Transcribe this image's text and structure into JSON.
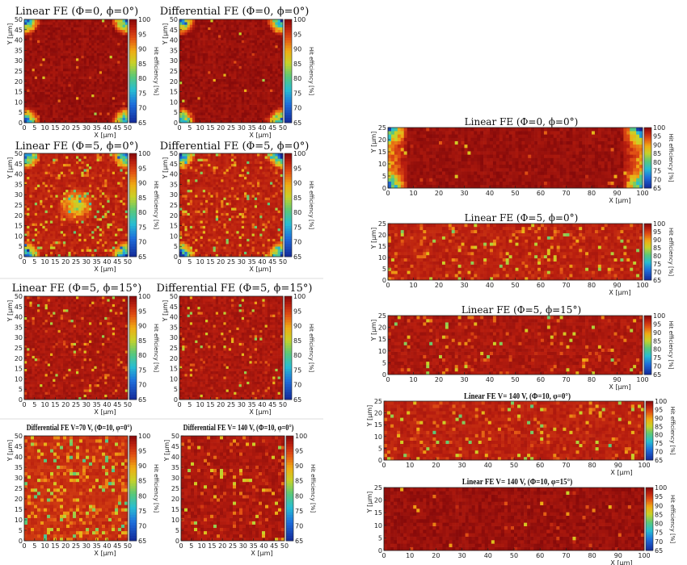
{
  "chart_data": [
    {
      "type": "heatmap",
      "id": "p1",
      "title": "Linear FE (Φ=0, ϕ=0°)",
      "xlabel": "X [μm]",
      "ylabel": "Y [μm]",
      "colorbar_label": "Hit efficiency [%]",
      "xlim": [
        0,
        50
      ],
      "ylim": [
        0,
        50
      ],
      "zlim": [
        65,
        100
      ],
      "x_ticks": [
        0,
        5,
        10,
        15,
        20,
        25,
        30,
        35,
        40,
        45,
        50
      ],
      "y_ticks": [
        0,
        5,
        10,
        15,
        20,
        25,
        30,
        35,
        40,
        45,
        50
      ],
      "colorbar_ticks": [
        65,
        70,
        75,
        80,
        85,
        90,
        95,
        100
      ],
      "pattern": "corners",
      "bulk_efficiency": 99,
      "noise": 0.03
    },
    {
      "type": "heatmap",
      "id": "p2",
      "title": "Differential FE (Φ=0, ϕ=0°)",
      "xlabel": "X [μm]",
      "ylabel": "Y [μm]",
      "colorbar_label": "Hit efficiency [%]",
      "xlim": [
        0,
        50
      ],
      "ylim": [
        0,
        50
      ],
      "zlim": [
        65,
        100
      ],
      "x_ticks": [
        0,
        5,
        10,
        15,
        20,
        25,
        30,
        35,
        40,
        45,
        50
      ],
      "y_ticks": [
        0,
        5,
        10,
        15,
        20,
        25,
        30,
        35,
        40,
        45,
        50
      ],
      "colorbar_ticks": [
        65,
        70,
        75,
        80,
        85,
        90,
        95,
        100
      ],
      "pattern": "corners",
      "bulk_efficiency": 99,
      "noise": 0.03
    },
    {
      "type": "heatmap",
      "id": "p3",
      "title": "Linear FE (Φ=5, ϕ=0°)",
      "xlabel": "X [μm]",
      "ylabel": "Y [μm]",
      "colorbar_label": "Hit efficiency [%]",
      "xlim": [
        0,
        50
      ],
      "ylim": [
        0,
        50
      ],
      "zlim": [
        65,
        100
      ],
      "x_ticks": [
        0,
        5,
        10,
        15,
        20,
        25,
        30,
        35,
        40,
        45,
        50
      ],
      "y_ticks": [
        0,
        5,
        10,
        15,
        20,
        25,
        30,
        35,
        40,
        45,
        50
      ],
      "colorbar_ticks": [
        65,
        70,
        75,
        80,
        85,
        90,
        95,
        100
      ],
      "pattern": "corners_center",
      "bulk_efficiency": 97,
      "noise": 0.25
    },
    {
      "type": "heatmap",
      "id": "p4",
      "title": "Differential FE (Φ=5, ϕ=0°)",
      "xlabel": "X [μm]",
      "ylabel": "Y [μm]",
      "colorbar_label": "Hit efficiency [%]",
      "xlim": [
        0,
        50
      ],
      "ylim": [
        0,
        50
      ],
      "zlim": [
        65,
        100
      ],
      "x_ticks": [
        0,
        5,
        10,
        15,
        20,
        25,
        30,
        35,
        40,
        45,
        50
      ],
      "y_ticks": [
        0,
        5,
        10,
        15,
        20,
        25,
        30,
        35,
        40,
        45,
        50
      ],
      "colorbar_ticks": [
        65,
        70,
        75,
        80,
        85,
        90,
        95,
        100
      ],
      "pattern": "corners",
      "bulk_efficiency": 97,
      "noise": 0.25
    },
    {
      "type": "heatmap",
      "id": "p5",
      "title": "Linear FE (Φ=5, ϕ=15°)",
      "xlabel": "X [μm]",
      "ylabel": "Y [μm]",
      "colorbar_label": "Hit efficiency [%]",
      "xlim": [
        0,
        50
      ],
      "ylim": [
        0,
        50
      ],
      "zlim": [
        65,
        100
      ],
      "x_ticks": [
        0,
        5,
        10,
        15,
        20,
        25,
        30,
        35,
        40,
        45,
        50
      ],
      "y_ticks": [
        0,
        5,
        10,
        15,
        20,
        25,
        30,
        35,
        40,
        45,
        50
      ],
      "colorbar_ticks": [
        65,
        70,
        75,
        80,
        85,
        90,
        95,
        100
      ],
      "pattern": "uniform",
      "bulk_efficiency": 98,
      "noise": 0.15
    },
    {
      "type": "heatmap",
      "id": "p6",
      "title": "Differential FE (Φ=5, ϕ=15°)",
      "xlabel": "X [μm]",
      "ylabel": "Y [μm]",
      "colorbar_label": "Hit efficiency [%]",
      "xlim": [
        0,
        50
      ],
      "ylim": [
        0,
        50
      ],
      "zlim": [
        65,
        100
      ],
      "x_ticks": [
        0,
        5,
        10,
        15,
        20,
        25,
        30,
        35,
        40,
        45,
        50
      ],
      "y_ticks": [
        0,
        5,
        10,
        15,
        20,
        25,
        30,
        35,
        40,
        45,
        50
      ],
      "colorbar_ticks": [
        65,
        70,
        75,
        80,
        85,
        90,
        95,
        100
      ],
      "pattern": "uniform",
      "bulk_efficiency": 98,
      "noise": 0.12
    },
    {
      "type": "heatmap",
      "id": "p7",
      "title": "Differential FE V=70 V, (Φ=10, φ=0°)",
      "xlabel": "X [μm]",
      "ylabel": "Y [μm]",
      "colorbar_label": "Hit efficiency [%]",
      "xlim": [
        0,
        50
      ],
      "ylim": [
        0,
        50
      ],
      "zlim": [
        65,
        100
      ],
      "x_ticks": [
        0,
        5,
        10,
        15,
        20,
        25,
        30,
        35,
        40,
        45,
        50
      ],
      "y_ticks": [
        0,
        5,
        10,
        15,
        20,
        25,
        30,
        35,
        40,
        45,
        50
      ],
      "colorbar_ticks": [
        65,
        70,
        75,
        80,
        85,
        90,
        95,
        100
      ],
      "pattern": "uniform",
      "bulk_efficiency": 96,
      "noise": 0.4
    },
    {
      "type": "heatmap",
      "id": "p8",
      "title": "Differential FE V= 140 V, (Φ=10, φ=0°)",
      "xlabel": "X [μm]",
      "ylabel": "Y [μm]",
      "colorbar_label": "Hit efficiency [%]",
      "xlim": [
        0,
        50
      ],
      "ylim": [
        0,
        50
      ],
      "zlim": [
        65,
        100
      ],
      "x_ticks": [
        0,
        5,
        10,
        15,
        20,
        25,
        30,
        35,
        40,
        45,
        50
      ],
      "y_ticks": [
        0,
        5,
        10,
        15,
        20,
        25,
        30,
        35,
        40,
        45,
        50
      ],
      "colorbar_ticks": [
        65,
        70,
        75,
        80,
        85,
        90,
        95,
        100
      ],
      "pattern": "uniform",
      "bulk_efficiency": 98,
      "noise": 0.2
    },
    {
      "type": "heatmap",
      "id": "p9",
      "title": "Linear FE (Φ=0, ϕ=0°)",
      "xlabel": "X [μm]",
      "ylabel": "Y [μm]",
      "colorbar_label": "Hit efficiency [%]",
      "xlim": [
        0,
        100
      ],
      "ylim": [
        0,
        25
      ],
      "zlim": [
        65,
        100
      ],
      "x_ticks": [
        0,
        10,
        20,
        30,
        40,
        50,
        60,
        70,
        80,
        90,
        100
      ],
      "y_ticks": [
        0,
        5,
        10,
        15,
        20,
        25
      ],
      "colorbar_ticks": [
        65,
        70,
        75,
        80,
        85,
        90,
        95,
        100
      ],
      "pattern": "edges",
      "bulk_efficiency": 99,
      "noise": 0.03
    },
    {
      "type": "heatmap",
      "id": "p10",
      "title": "Linear FE (Φ=5, ϕ=0°)",
      "xlabel": "X [μm]",
      "ylabel": "Y [μm]",
      "colorbar_label": "Hit efficiency [%]",
      "xlim": [
        0,
        100
      ],
      "ylim": [
        0,
        25
      ],
      "zlim": [
        65,
        100
      ],
      "x_ticks": [
        0,
        10,
        20,
        30,
        40,
        50,
        60,
        70,
        80,
        90,
        100
      ],
      "y_ticks": [
        0,
        5,
        10,
        15,
        20,
        25
      ],
      "colorbar_ticks": [
        65,
        70,
        75,
        80,
        85,
        90,
        95,
        100
      ],
      "pattern": "uniform",
      "bulk_efficiency": 97,
      "noise": 0.22
    },
    {
      "type": "heatmap",
      "id": "p11",
      "title": "Linear FE (Φ=5, ϕ=15°)",
      "xlabel": "X [μm]",
      "ylabel": "Y [μm]",
      "colorbar_label": "Hit efficiency [%]",
      "xlim": [
        0,
        100
      ],
      "ylim": [
        0,
        25
      ],
      "zlim": [
        65,
        100
      ],
      "x_ticks": [
        0,
        10,
        20,
        30,
        40,
        50,
        60,
        70,
        80,
        90,
        100
      ],
      "y_ticks": [
        0,
        5,
        10,
        15,
        20,
        25
      ],
      "colorbar_ticks": [
        65,
        70,
        75,
        80,
        85,
        90,
        95,
        100
      ],
      "pattern": "uniform",
      "bulk_efficiency": 98,
      "noise": 0.15
    },
    {
      "type": "heatmap",
      "id": "p12",
      "title": "Linear FE V= 140 V, (Φ=10, φ=0°)",
      "xlabel": "X [μm]",
      "ylabel": "Y [μm]",
      "colorbar_label": "Hit efficiency [%]",
      "xlim": [
        0,
        100
      ],
      "ylim": [
        0,
        25
      ],
      "zlim": [
        65,
        100
      ],
      "x_ticks": [
        0,
        10,
        20,
        30,
        40,
        50,
        60,
        70,
        80,
        90,
        100
      ],
      "y_ticks": [
        0,
        5,
        10,
        15,
        20,
        25
      ],
      "colorbar_ticks": [
        65,
        70,
        75,
        80,
        85,
        90,
        95,
        100
      ],
      "pattern": "uniform",
      "bulk_efficiency": 97,
      "noise": 0.22
    },
    {
      "type": "heatmap",
      "id": "p13",
      "title": "Linear FE V= 140 V, (Φ=10, φ=15°)",
      "xlabel": "X [μm]",
      "ylabel": "Y [μm]",
      "colorbar_label": "Hit efficiency [%]",
      "xlim": [
        0,
        100
      ],
      "ylim": [
        0,
        25
      ],
      "zlim": [
        65,
        100
      ],
      "x_ticks": [
        0,
        10,
        20,
        30,
        40,
        50,
        60,
        70,
        80,
        90,
        100
      ],
      "y_ticks": [
        0,
        5,
        10,
        15,
        20,
        25
      ],
      "colorbar_ticks": [
        65,
        70,
        75,
        80,
        85,
        90,
        95,
        100
      ],
      "pattern": "uniform",
      "bulk_efficiency": 99,
      "noise": 0.06
    }
  ],
  "colors": {
    "high": "#8b0000",
    "mid": "#e8c000",
    "low": "#1a3fb0"
  }
}
